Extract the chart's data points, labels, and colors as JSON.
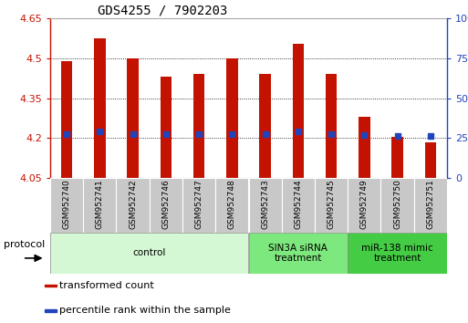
{
  "title": "GDS4255 / 7902203",
  "samples": [
    "GSM952740",
    "GSM952741",
    "GSM952742",
    "GSM952746",
    "GSM952747",
    "GSM952748",
    "GSM952743",
    "GSM952744",
    "GSM952745",
    "GSM952749",
    "GSM952750",
    "GSM952751"
  ],
  "bar_tops": [
    4.49,
    4.575,
    4.5,
    4.43,
    4.44,
    4.5,
    4.44,
    4.555,
    4.44,
    4.28,
    4.205,
    4.185
  ],
  "bar_bottom": 4.05,
  "blue_marker_vals": [
    4.215,
    4.225,
    4.215,
    4.215,
    4.215,
    4.215,
    4.215,
    4.225,
    4.215,
    4.21,
    4.208,
    4.208
  ],
  "ylim": [
    4.05,
    4.65
  ],
  "yticks": [
    4.05,
    4.2,
    4.35,
    4.5,
    4.65
  ],
  "ytick_labels": [
    "4.05",
    "4.2",
    "4.35",
    "4.5",
    "4.65"
  ],
  "right_yticks": [
    0,
    25,
    50,
    75,
    100
  ],
  "right_ytick_labels": [
    "0",
    "25",
    "50",
    "75",
    "100%"
  ],
  "bar_color": "#c41200",
  "blue_color": "#2244bb",
  "bg_color": "#ffffff",
  "groups": [
    {
      "label": "control",
      "start": 0,
      "end": 6,
      "color": "#d4f7d4",
      "border_color": "#888888"
    },
    {
      "label": "SIN3A siRNA\ntreatment",
      "start": 6,
      "end": 9,
      "color": "#7de87d",
      "border_color": "#888888"
    },
    {
      "label": "miR-138 mimic\ntreatment",
      "start": 9,
      "end": 12,
      "color": "#44cc44",
      "border_color": "#888888"
    }
  ],
  "protocol_label": "protocol",
  "bar_width": 0.35
}
